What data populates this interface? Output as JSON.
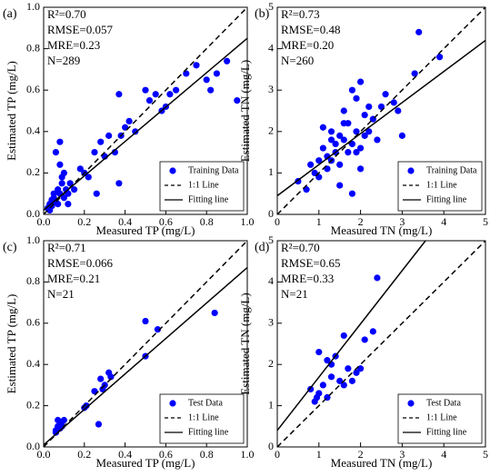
{
  "chart_data": [
    {
      "type": "scatter",
      "panel_label": "(a)",
      "xlabel": "Measured TP (mg/L)",
      "ylabel": "Estimated TP (mg/L)",
      "annotations": [
        "R²=0.70",
        "RMSE=0.057",
        "MRE=0.23",
        "N=289"
      ],
      "xlim": [
        0,
        1
      ],
      "ylim": [
        0,
        1
      ],
      "xticks": [
        {
          "value": 0,
          "label": "0.0"
        },
        0.2,
        0.4,
        0.6,
        0.8,
        {
          "value": 1,
          "label": "1.0"
        }
      ],
      "yticks": [
        {
          "value": 0,
          "label": "0.0"
        },
        0.2,
        0.4,
        0.6,
        0.8,
        {
          "value": 1,
          "label": "1.0"
        }
      ],
      "legend": "lower right",
      "series": [
        {
          "name": "Training Data",
          "color": "#0000ff",
          "style": "marker",
          "x": [
            0.02,
            0.03,
            0.04,
            0.05,
            0.05,
            0.06,
            0.07,
            0.08,
            0.08,
            0.09,
            0.1,
            0.11,
            0.12,
            0.03,
            0.04,
            0.06,
            0.07,
            0.09,
            0.1,
            0.13,
            0.15,
            0.18,
            0.2,
            0.22,
            0.25,
            0.28,
            0.3,
            0.32,
            0.35,
            0.37,
            0.4,
            0.42,
            0.45,
            0.5,
            0.52,
            0.55,
            0.58,
            0.6,
            0.62,
            0.65,
            0.7,
            0.75,
            0.8,
            0.82,
            0.85,
            0.9,
            0.95,
            0.37,
            0.38,
            0.08,
            0.26,
            0.12
          ],
          "values": [
            0.03,
            0.05,
            0.04,
            0.08,
            0.1,
            0.06,
            0.12,
            0.1,
            0.35,
            0.15,
            0.08,
            0.12,
            0.1,
            0.02,
            0.07,
            0.3,
            0.05,
            0.18,
            0.2,
            0.15,
            0.12,
            0.22,
            0.2,
            0.18,
            0.3,
            0.35,
            0.28,
            0.38,
            0.3,
            0.58,
            0.42,
            0.45,
            0.4,
            0.6,
            0.55,
            0.58,
            0.5,
            0.52,
            0.58,
            0.6,
            0.68,
            0.72,
            0.65,
            0.6,
            0.68,
            0.74,
            0.55,
            0.15,
            0.38,
            0.24,
            0.1,
            0.05
          ]
        },
        {
          "name": "1:1 Line",
          "color": "#000000",
          "style": "dashed",
          "x": [
            0,
            1
          ],
          "values": [
            0,
            1
          ]
        },
        {
          "name": "Fitting line",
          "color": "#000000",
          "style": "solid",
          "x": [
            0,
            1
          ],
          "values": [
            0.02,
            0.85
          ]
        }
      ]
    },
    {
      "type": "scatter",
      "panel_label": "(b)",
      "xlabel": "Measured TN (mg/L)",
      "ylabel": "Estimated TN (mg/L)",
      "annotations": [
        "R²=0.73",
        "RMSE=0.48",
        "MRE=0.20",
        "N=260"
      ],
      "xlim": [
        0,
        5
      ],
      "ylim": [
        0,
        5
      ],
      "xticks": [
        0,
        1,
        2,
        3,
        4,
        5
      ],
      "yticks": [
        0,
        1,
        2,
        3,
        4,
        5
      ],
      "legend": "lower right",
      "series": [
        {
          "name": "Training Data",
          "color": "#0000ff",
          "style": "marker",
          "x": [
            0.5,
            0.7,
            0.8,
            0.9,
            1.0,
            1.0,
            1.1,
            1.2,
            1.2,
            1.3,
            1.3,
            1.4,
            1.4,
            1.5,
            1.5,
            1.6,
            1.6,
            1.7,
            1.7,
            1.8,
            1.8,
            1.9,
            1.9,
            2.0,
            2.0,
            2.1,
            2.1,
            2.2,
            2.3,
            2.4,
            2.5,
            2.6,
            2.8,
            2.9,
            3.0,
            3.3,
            3.9,
            3.4,
            1.1,
            1.5,
            1.8,
            2.0,
            1.3,
            1.6,
            2.2,
            1.9
          ],
          "values": [
            0.8,
            0.6,
            1.2,
            1.0,
            1.3,
            0.9,
            1.6,
            1.4,
            1.1,
            2.0,
            1.3,
            1.5,
            1.7,
            1.9,
            1.2,
            1.8,
            2.5,
            1.5,
            2.2,
            1.7,
            0.5,
            2.0,
            2.8,
            1.6,
            3.2,
            1.9,
            2.4,
            2.0,
            2.3,
            1.8,
            2.6,
            2.9,
            2.7,
            2.5,
            1.9,
            3.4,
            3.8,
            4.4,
            2.1,
            0.7,
            3.0,
            1.1,
            1.8,
            2.2,
            2.6,
            1.5
          ]
        },
        {
          "name": "1:1 Line",
          "color": "#000000",
          "style": "dashed",
          "x": [
            0,
            5
          ],
          "values": [
            0,
            5
          ]
        },
        {
          "name": "Fitting line",
          "color": "#000000",
          "style": "solid",
          "x": [
            0,
            5
          ],
          "values": [
            0.45,
            4.2
          ]
        }
      ]
    },
    {
      "type": "scatter",
      "panel_label": "(c)",
      "xlabel": "Measured TP (mg/L)",
      "ylabel": "Estimated TP (mg/L)",
      "annotations": [
        "R²=0.71",
        "RMSE=0.066",
        "MRE=0.21",
        "N=21"
      ],
      "xlim": [
        0,
        1
      ],
      "ylim": [
        0,
        1
      ],
      "xticks": [
        {
          "value": 0,
          "label": "0.0"
        },
        0.2,
        0.4,
        0.6,
        0.8,
        {
          "value": 1,
          "label": "1.0"
        }
      ],
      "yticks": [
        {
          "value": 0,
          "label": "0.0"
        },
        0.2,
        0.4,
        0.6,
        0.8,
        {
          "value": 1,
          "label": "1.0"
        }
      ],
      "legend": "lower right",
      "series": [
        {
          "name": "Test Data",
          "color": "#0000ff",
          "style": "marker",
          "x": [
            0.06,
            0.07,
            0.07,
            0.08,
            0.09,
            0.1,
            0.2,
            0.21,
            0.25,
            0.27,
            0.28,
            0.3,
            0.32,
            0.33,
            0.5,
            0.5,
            0.56,
            0.84,
            0.06,
            0.09,
            0.29
          ],
          "values": [
            0.08,
            0.1,
            0.13,
            0.09,
            0.12,
            0.13,
            0.19,
            0.2,
            0.27,
            0.11,
            0.33,
            0.3,
            0.36,
            0.34,
            0.61,
            0.44,
            0.57,
            0.65,
            0.07,
            0.1,
            0.28
          ]
        },
        {
          "name": "1:1 Line",
          "color": "#000000",
          "style": "dashed",
          "x": [
            0,
            1
          ],
          "values": [
            0,
            1
          ]
        },
        {
          "name": "Fitting line",
          "color": "#000000",
          "style": "solid",
          "x": [
            0,
            1
          ],
          "values": [
            0.01,
            0.87
          ]
        }
      ]
    },
    {
      "type": "scatter",
      "panel_label": "(d)",
      "xlabel": "Measured TN (mg/L)",
      "ylabel": "Estimated TN (mg/L)",
      "annotations": [
        "R²=0.70",
        "RMSE=0.65",
        "MRE=0.33",
        "N=21"
      ],
      "xlim": [
        0,
        5
      ],
      "ylim": [
        0,
        5
      ],
      "xticks": [
        0,
        1,
        2,
        3,
        4,
        5
      ],
      "yticks": [
        0,
        1,
        2,
        3,
        4,
        5
      ],
      "legend": "lower right",
      "series": [
        {
          "name": "Test Data",
          "color": "#0000ff",
          "style": "marker",
          "x": [
            0.8,
            0.9,
            0.95,
            1.0,
            1.0,
            1.1,
            1.2,
            1.2,
            1.3,
            1.3,
            1.4,
            1.5,
            1.6,
            1.6,
            1.7,
            1.8,
            1.9,
            2.0,
            2.1,
            2.3,
            2.4
          ],
          "values": [
            1.4,
            1.1,
            1.2,
            2.3,
            1.3,
            1.5,
            2.1,
            1.2,
            1.7,
            2.0,
            2.2,
            1.6,
            1.5,
            2.7,
            1.9,
            1.6,
            1.8,
            1.9,
            2.6,
            2.8,
            4.1
          ]
        },
        {
          "name": "1:1 Line",
          "color": "#000000",
          "style": "dashed",
          "x": [
            0,
            5
          ],
          "values": [
            0,
            5
          ]
        },
        {
          "name": "Fitting line",
          "color": "#000000",
          "style": "solid",
          "x": [
            0,
            3.56
          ],
          "values": [
            0.4,
            5
          ]
        }
      ]
    }
  ]
}
